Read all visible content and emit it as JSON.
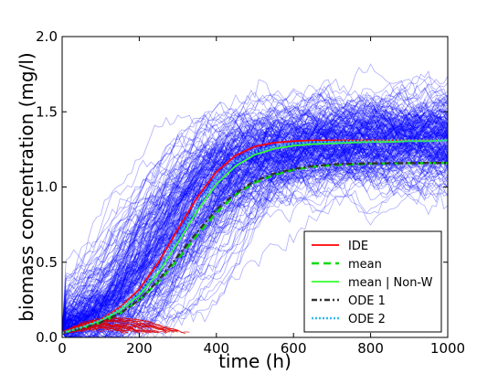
{
  "chart_data": {
    "type": "line",
    "title": "",
    "xlabel": "time (h)",
    "ylabel": "biomass concentration (mg/l)",
    "xlim": [
      0,
      1000
    ],
    "ylim": [
      0,
      2.0
    ],
    "xticks": [
      0,
      200,
      400,
      600,
      800,
      1000
    ],
    "xtick_labels": [
      "0",
      "200",
      "400",
      "600",
      "800",
      "1000"
    ],
    "yticks": [
      0.0,
      0.5,
      1.0,
      1.5,
      2.0
    ],
    "ytick_labels": [
      "0.0",
      "0.5",
      "1.0",
      "1.5",
      "2.0"
    ],
    "grid": false,
    "legend_position": "lower-right",
    "background_trajectories": {
      "color": "#0000ff",
      "description_visible": false
    },
    "extinct_trajectories": {
      "color": "#dd0000"
    },
    "x": [
      0,
      50,
      100,
      150,
      200,
      250,
      300,
      350,
      400,
      450,
      500,
      550,
      600,
      650,
      700,
      750,
      800,
      850,
      900,
      950,
      1000
    ],
    "series": [
      {
        "name": "IDE",
        "color": "#ff0000",
        "style": "solid",
        "values": [
          0.03,
          0.07,
          0.12,
          0.2,
          0.32,
          0.5,
          0.72,
          0.93,
          1.1,
          1.21,
          1.27,
          1.295,
          1.305,
          1.31,
          1.31,
          1.31,
          1.31,
          1.31,
          1.31,
          1.31,
          1.31
        ]
      },
      {
        "name": "mean",
        "color": "#00dd00",
        "style": "dashed",
        "values": [
          0.03,
          0.06,
          0.1,
          0.16,
          0.25,
          0.37,
          0.52,
          0.68,
          0.83,
          0.95,
          1.03,
          1.08,
          1.115,
          1.135,
          1.145,
          1.15,
          1.155,
          1.157,
          1.158,
          1.159,
          1.16
        ]
      },
      {
        "name": "mean | Non-W",
        "color": "#33ff33",
        "style": "solid",
        "values": [
          0.03,
          0.065,
          0.11,
          0.18,
          0.28,
          0.43,
          0.63,
          0.84,
          1.02,
          1.14,
          1.215,
          1.255,
          1.275,
          1.285,
          1.29,
          1.295,
          1.3,
          1.3,
          1.305,
          1.305,
          1.31
        ]
      },
      {
        "name": "ODE 1",
        "color": "#333333",
        "style": "dashdot",
        "values": [
          0.03,
          0.06,
          0.1,
          0.16,
          0.25,
          0.38,
          0.54,
          0.7,
          0.85,
          0.96,
          1.04,
          1.09,
          1.12,
          1.14,
          1.15,
          1.155,
          1.157,
          1.158,
          1.159,
          1.16,
          1.16
        ]
      },
      {
        "name": "ODE 2",
        "color": "#33bbee",
        "style": "dotted",
        "values": [
          0.03,
          0.068,
          0.115,
          0.19,
          0.3,
          0.46,
          0.67,
          0.88,
          1.06,
          1.17,
          1.235,
          1.27,
          1.29,
          1.3,
          1.3,
          1.305,
          1.305,
          1.31,
          1.31,
          1.31,
          1.31
        ]
      }
    ]
  }
}
